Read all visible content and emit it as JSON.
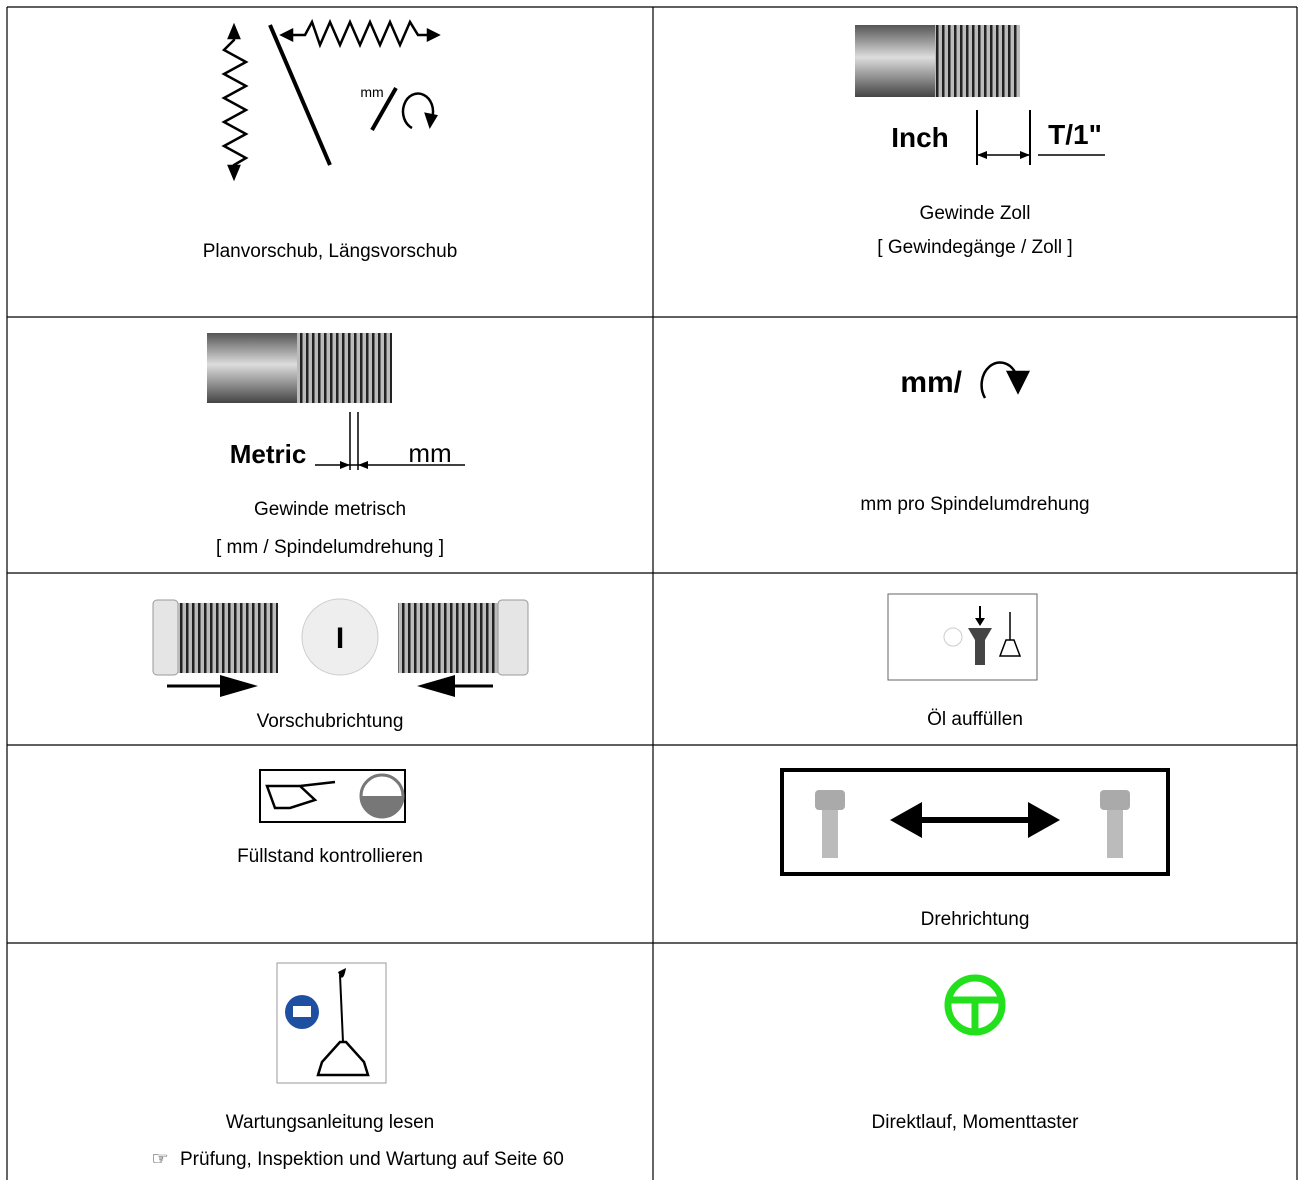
{
  "table": {
    "rows": [
      [
        {
          "caption": [
            "Planvorschub, Längsvorschub"
          ],
          "icon_labels": [
            "mm"
          ]
        },
        {
          "caption": [
            "Gewinde Zoll",
            "[ Gewindegänge / Zoll ]"
          ],
          "icon_labels": [
            "Inch",
            "T/1\""
          ]
        }
      ],
      [
        {
          "caption": [
            "Gewinde metrisch",
            "[ mm / Spindelumdrehung ]"
          ],
          "icon_labels": [
            "Metric",
            "mm"
          ]
        },
        {
          "caption": [
            "mm pro Spindelumdrehung"
          ],
          "icon_labels": [
            "mm/"
          ]
        }
      ],
      [
        {
          "caption": [
            "Vorschubrichtung"
          ],
          "icon_labels": [
            "I"
          ]
        },
        {
          "caption": [
            "Öl auffüllen"
          ]
        }
      ],
      [
        {
          "caption": [
            "Füllstand kontrollieren"
          ]
        },
        {
          "caption": [
            "Drehrichtung"
          ]
        }
      ],
      [
        {
          "caption": [
            "Wartungsanleitung lesen"
          ],
          "reference": {
            "marker": "☞",
            "text": "Prüfung, Inspektion und Wartung auf Seite 60"
          }
        },
        {
          "caption": [
            "Direktlauf, Momenttaster"
          ]
        }
      ]
    ]
  }
}
